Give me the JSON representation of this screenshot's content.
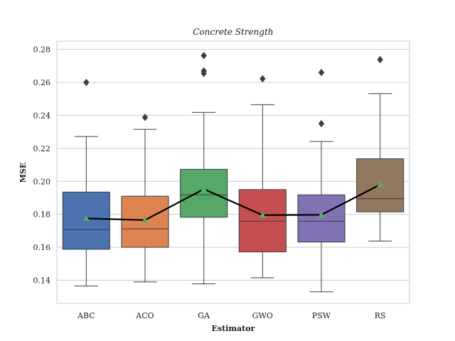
{
  "chart_data": {
    "type": "box",
    "title": "Concrete Strength",
    "xlabel": "Estimator",
    "ylabel": "MSE",
    "ylim": [
      0.126,
      0.285
    ],
    "yticks": [
      0.14,
      0.16,
      0.18,
      0.2,
      0.22,
      0.24,
      0.26,
      0.28
    ],
    "ytick_labels": [
      "0.14",
      "0.16",
      "0.18",
      "0.20",
      "0.22",
      "0.24",
      "0.26",
      "0.28"
    ],
    "grid": "horizontal",
    "categories": [
      "ABC",
      "ACO",
      "GA",
      "GWO",
      "PSW",
      "RS"
    ],
    "colors": [
      "#4c72b0",
      "#dd8452",
      "#55a868",
      "#c44e52",
      "#8172b3",
      "#937860"
    ],
    "mean_marker_color": "#55b06a",
    "mean_line_color": "#000000",
    "boxes": [
      {
        "category": "ABC",
        "whisker_low": 0.1365,
        "q1": 0.1588,
        "median": 0.1707,
        "q3": 0.1935,
        "whisker_high": 0.2272,
        "mean": 0.1775,
        "outliers": [
          0.26
        ]
      },
      {
        "category": "ACO",
        "whisker_low": 0.139,
        "q1": 0.16,
        "median": 0.1712,
        "q3": 0.191,
        "whisker_high": 0.2315,
        "mean": 0.1765,
        "outliers": [
          0.2388
        ]
      },
      {
        "category": "GA",
        "whisker_low": 0.1378,
        "q1": 0.1782,
        "median": 0.1918,
        "q3": 0.2073,
        "whisker_high": 0.2418,
        "mean": 0.1953,
        "outliers": [
          0.2763,
          0.267,
          0.2655
        ]
      },
      {
        "category": "GWO",
        "whisker_low": 0.1415,
        "q1": 0.1572,
        "median": 0.1758,
        "q3": 0.195,
        "whisker_high": 0.2465,
        "mean": 0.1795,
        "outliers": [
          0.2622
        ]
      },
      {
        "category": "PSW",
        "whisker_low": 0.133,
        "q1": 0.1632,
        "median": 0.1758,
        "q3": 0.1918,
        "whisker_high": 0.2242,
        "mean": 0.1797,
        "outliers": [
          0.266,
          0.235
        ]
      },
      {
        "category": "RS",
        "whisker_low": 0.1638,
        "q1": 0.1815,
        "median": 0.1895,
        "q3": 0.2137,
        "whisker_high": 0.2532,
        "mean": 0.198,
        "outliers": [
          0.2738
        ]
      }
    ]
  }
}
